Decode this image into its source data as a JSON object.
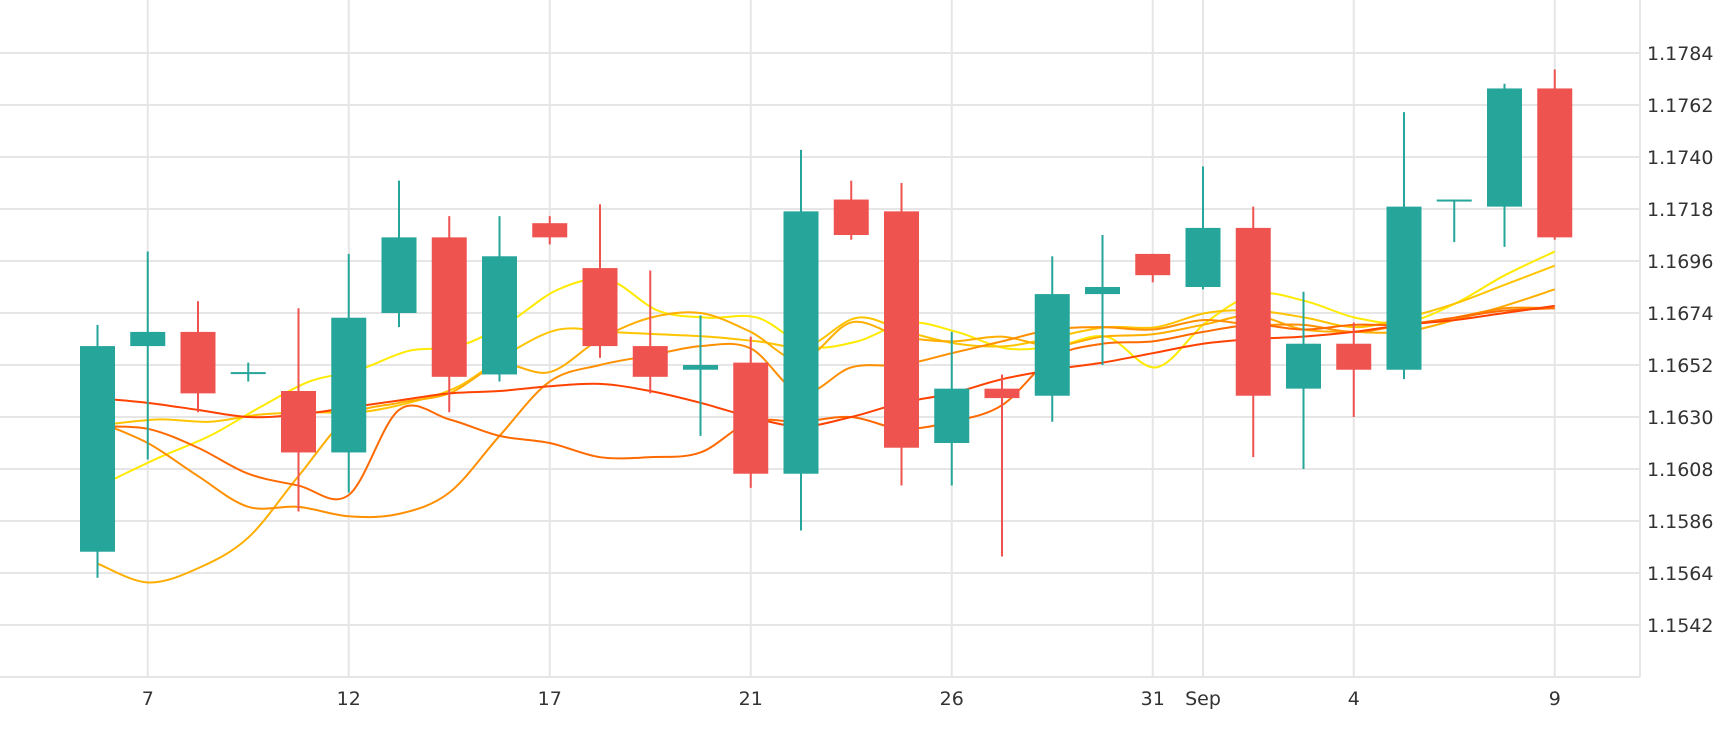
{
  "chart_data": {
    "type": "candlestick",
    "title": "",
    "xlabel": "",
    "ylabel": "",
    "ylim": [
      1.152,
      1.18
    ],
    "y_ticks": [
      "1.1542",
      "1.1564",
      "1.1586",
      "1.1608",
      "1.1630",
      "1.1652",
      "1.1674",
      "1.1696",
      "1.1718",
      "1.1740",
      "1.1762",
      "1.1784"
    ],
    "x_ticks": [
      {
        "label": "7",
        "idx": 1
      },
      {
        "label": "12",
        "idx": 5
      },
      {
        "label": "17",
        "idx": 9
      },
      {
        "label": "21",
        "idx": 13
      },
      {
        "label": "26",
        "idx": 17
      },
      {
        "label": "31",
        "idx": 21
      },
      {
        "label": "Sep",
        "idx": 22
      },
      {
        "label": "4",
        "idx": 25
      },
      {
        "label": "9",
        "idx": 29
      }
    ],
    "grid": true,
    "colors": {
      "up": "#26a69a",
      "down": "#ef5350",
      "grid": "#e6e6e6",
      "text": "#333333"
    },
    "candles": [
      {
        "o": 1.1573,
        "h": 1.1669,
        "l": 1.1562,
        "c": 1.166
      },
      {
        "o": 1.166,
        "h": 1.17,
        "l": 1.1612,
        "c": 1.1666
      },
      {
        "o": 1.1666,
        "h": 1.1679,
        "l": 1.1632,
        "c": 1.164
      },
      {
        "o": 1.1649,
        "h": 1.1653,
        "l": 1.1645,
        "c": 1.1649
      },
      {
        "o": 1.1641,
        "h": 1.1676,
        "l": 1.159,
        "c": 1.1615
      },
      {
        "o": 1.1615,
        "h": 1.1699,
        "l": 1.1598,
        "c": 1.1672
      },
      {
        "o": 1.1674,
        "h": 1.173,
        "l": 1.1668,
        "c": 1.1706
      },
      {
        "o": 1.1706,
        "h": 1.1715,
        "l": 1.1632,
        "c": 1.1647
      },
      {
        "o": 1.1648,
        "h": 1.1715,
        "l": 1.1645,
        "c": 1.1698
      },
      {
        "o": 1.1712,
        "h": 1.1715,
        "l": 1.1703,
        "c": 1.1706
      },
      {
        "o": 1.1693,
        "h": 1.172,
        "l": 1.1655,
        "c": 1.166
      },
      {
        "o": 1.166,
        "h": 1.1692,
        "l": 1.164,
        "c": 1.1647
      },
      {
        "o": 1.165,
        "h": 1.1673,
        "l": 1.1622,
        "c": 1.1652
      },
      {
        "o": 1.1653,
        "h": 1.1664,
        "l": 1.16,
        "c": 1.1606
      },
      {
        "o": 1.1606,
        "h": 1.1743,
        "l": 1.1582,
        "c": 1.1717
      },
      {
        "o": 1.1722,
        "h": 1.173,
        "l": 1.1705,
        "c": 1.1707
      },
      {
        "o": 1.1717,
        "h": 1.1729,
        "l": 1.1601,
        "c": 1.1617
      },
      {
        "o": 1.1619,
        "h": 1.1666,
        "l": 1.1601,
        "c": 1.1642
      },
      {
        "o": 1.1642,
        "h": 1.1648,
        "l": 1.1571,
        "c": 1.1638
      },
      {
        "o": 1.1639,
        "h": 1.1698,
        "l": 1.1628,
        "c": 1.1682
      },
      {
        "o": 1.1682,
        "h": 1.1707,
        "l": 1.1652,
        "c": 1.1685
      },
      {
        "o": 1.1699,
        "h": 1.1699,
        "l": 1.1687,
        "c": 1.169
      },
      {
        "o": 1.1685,
        "h": 1.1736,
        "l": 1.1684,
        "c": 1.171
      },
      {
        "o": 1.171,
        "h": 1.1719,
        "l": 1.1613,
        "c": 1.1639
      },
      {
        "o": 1.1642,
        "h": 1.1683,
        "l": 1.1608,
        "c": 1.1661
      },
      {
        "o": 1.1661,
        "h": 1.167,
        "l": 1.163,
        "c": 1.165
      },
      {
        "o": 1.165,
        "h": 1.1759,
        "l": 1.1646,
        "c": 1.1719
      },
      {
        "o": 1.1722,
        "h": 1.1722,
        "l": 1.1704,
        "c": 1.1722
      },
      {
        "o": 1.1719,
        "h": 1.1771,
        "l": 1.1702,
        "c": 1.1769
      },
      {
        "o": 1.1769,
        "h": 1.1777,
        "l": 1.1705,
        "c": 1.1706
      }
    ],
    "lines": [
      {
        "color": "#ffea00",
        "x_start": 0.25,
        "x_end": 29,
        "values": [
          1.1603,
          1.1613,
          1.1622,
          1.1634,
          1.1645,
          1.165,
          1.1658,
          1.166,
          1.167,
          1.1684,
          1.1688,
          1.1675,
          1.1672,
          1.1672,
          1.166,
          1.1662,
          1.167,
          1.1666,
          1.1659,
          1.166,
          1.1664,
          1.1651,
          1.167,
          1.1682,
          1.1679,
          1.1672,
          1.167,
          1.1678,
          1.169,
          1.17
        ]
      },
      {
        "color": "#ffc400",
        "x_start": 0.25,
        "x_end": 29,
        "values": [
          1.1627,
          1.1629,
          1.1628,
          1.1631,
          1.1632,
          1.1632,
          1.1636,
          1.1643,
          1.1657,
          1.1667,
          1.1666,
          1.1665,
          1.1664,
          1.1662,
          1.166,
          1.1672,
          1.1666,
          1.1661,
          1.166,
          1.1664,
          1.1668,
          1.1668,
          1.1674,
          1.1675,
          1.1672,
          1.1668,
          1.1672,
          1.1678,
          1.1686,
          1.1694
        ]
      },
      {
        "color": "#ffae00",
        "x_start": 0,
        "x_end": 29,
        "values": [
          1.1568,
          1.156,
          1.1566,
          1.1579,
          1.1605,
          1.163,
          1.1636,
          1.164,
          1.1652,
          1.1649,
          1.1663,
          1.1672,
          1.1674,
          1.1666,
          1.1654,
          1.167,
          1.1664,
          1.1662,
          1.1664,
          1.166,
          1.1664,
          1.1665,
          1.1669,
          1.1673,
          1.1667,
          1.1666,
          1.1666,
          1.1671,
          1.1677,
          1.1684
        ]
      },
      {
        "color": "#ff8f00",
        "x_start": 0,
        "x_end": 29,
        "values": [
          1.1628,
          1.1619,
          1.1605,
          1.1592,
          1.1592,
          1.1588,
          1.1589,
          1.1598,
          1.1622,
          1.1645,
          1.1652,
          1.1656,
          1.166,
          1.1659,
          1.164,
          1.1651,
          1.1652,
          1.1657,
          1.1662,
          1.1667,
          1.1668,
          1.1667,
          1.1671,
          1.1669,
          1.1669,
          1.1666,
          1.1669,
          1.1672,
          1.1676,
          1.1676
        ]
      },
      {
        "color": "#ff6a00",
        "x_start": 0,
        "x_end": 29,
        "values": [
          1.1626,
          1.1625,
          1.1617,
          1.1606,
          1.1601,
          1.1597,
          1.1633,
          1.1629,
          1.1622,
          1.1619,
          1.1613,
          1.1613,
          1.1615,
          1.1628,
          1.1628,
          1.163,
          1.1625,
          1.1628,
          1.1635,
          1.1655,
          1.1661,
          1.1662,
          1.1666,
          1.1669,
          1.1667,
          1.1669,
          1.1669,
          1.1672,
          1.1675,
          1.1676
        ]
      },
      {
        "color": "#ff4200",
        "x_start": 0,
        "x_end": 29,
        "values": [
          1.1638,
          1.1636,
          1.1633,
          1.163,
          1.1631,
          1.1634,
          1.1637,
          1.164,
          1.1641,
          1.1643,
          1.1644,
          1.1641,
          1.1636,
          1.163,
          1.1626,
          1.163,
          1.1636,
          1.164,
          1.1646,
          1.165,
          1.1653,
          1.1657,
          1.1661,
          1.1663,
          1.1664,
          1.1666,
          1.1669,
          1.1671,
          1.1674,
          1.1677
        ]
      }
    ]
  }
}
